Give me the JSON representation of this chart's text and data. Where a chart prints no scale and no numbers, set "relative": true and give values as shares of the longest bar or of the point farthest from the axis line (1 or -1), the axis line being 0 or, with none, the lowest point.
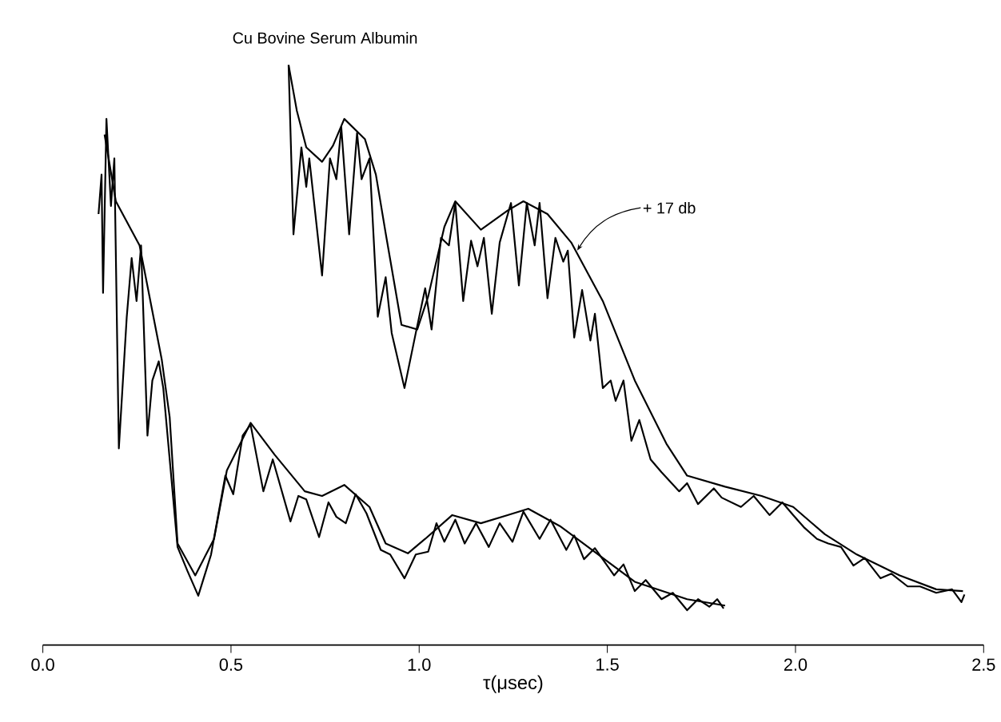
{
  "chart_data": {
    "type": "line",
    "title": "Cu Bovine Serum Albumin",
    "xlabel": "τ(μsec)",
    "relative": true,
    "xlim": [
      0,
      2.5
    ],
    "xticks": [
      {
        "value": 0,
        "label": "0.0"
      },
      {
        "value": 0.5,
        "label": "0.5"
      },
      {
        "value": 1,
        "label": "1.0"
      },
      {
        "value": 1.5,
        "label": "1.5"
      },
      {
        "value": 2,
        "label": "2.0"
      },
      {
        "value": 2.5,
        "label": "2.5"
      }
    ],
    "annotations": [
      {
        "text": "+ 17 db",
        "x": 1.42,
        "y": 0.68
      }
    ],
    "series": [
      {
        "color": "#000000",
        "x": [
          0.148,
          0.156,
          0.16,
          0.169,
          0.181,
          0.19,
          0.202,
          0.223,
          0.236,
          0.249,
          0.261,
          0.278,
          0.291,
          0.308,
          0.32,
          0.341,
          0.358,
          0.384,
          0.413,
          0.447,
          0.485,
          0.506,
          0.531,
          0.552,
          0.586,
          0.611,
          0.658,
          0.679,
          0.7,
          0.734,
          0.759,
          0.78,
          0.805,
          0.831,
          0.86,
          0.898,
          0.923,
          0.961,
          0.991,
          1.024,
          1.046,
          1.067,
          1.096,
          1.121,
          1.151,
          1.185,
          1.214,
          1.248,
          1.277,
          1.32,
          1.349,
          1.391,
          1.412,
          1.438,
          1.467,
          1.518,
          1.543,
          1.573,
          1.602,
          1.644,
          1.674,
          1.712,
          1.741,
          1.771,
          1.792,
          1.809
        ],
        "values": [
          0.743,
          0.811,
          0.607,
          0.907,
          0.757,
          0.839,
          0.339,
          0.566,
          0.667,
          0.593,
          0.689,
          0.361,
          0.456,
          0.489,
          0.443,
          0.292,
          0.169,
          0.128,
          0.085,
          0.156,
          0.292,
          0.26,
          0.361,
          0.38,
          0.265,
          0.32,
          0.213,
          0.257,
          0.251,
          0.186,
          0.246,
          0.221,
          0.21,
          0.26,
          0.227,
          0.164,
          0.156,
          0.115,
          0.156,
          0.161,
          0.21,
          0.178,
          0.216,
          0.175,
          0.21,
          0.169,
          0.21,
          0.178,
          0.23,
          0.183,
          0.216,
          0.164,
          0.189,
          0.148,
          0.167,
          0.12,
          0.139,
          0.093,
          0.112,
          0.079,
          0.09,
          0.06,
          0.079,
          0.066,
          0.079,
          0.063
        ]
      },
      {
        "color": "#000000",
        "x": [
          0.164,
          0.194,
          0.257,
          0.316,
          0.337,
          0.358,
          0.405,
          0.455,
          0.489,
          0.552,
          0.616,
          0.696,
          0.742,
          0.801,
          0.868,
          0.911,
          0.97,
          1.016,
          1.088,
          1.164,
          1.235,
          1.29,
          1.374,
          1.476,
          1.573,
          1.712,
          1.813
        ],
        "values": [
          0.88,
          0.765,
          0.689,
          0.492,
          0.393,
          0.175,
          0.12,
          0.183,
          0.301,
          0.383,
          0.328,
          0.265,
          0.257,
          0.276,
          0.238,
          0.175,
          0.158,
          0.183,
          0.224,
          0.21,
          0.224,
          0.235,
          0.205,
          0.156,
          0.109,
          0.079,
          0.068
        ]
      },
      {
        "color": "#000000",
        "x": [
          0.653,
          0.666,
          0.687,
          0.7,
          0.708,
          0.742,
          0.763,
          0.78,
          0.793,
          0.814,
          0.835,
          0.847,
          0.868,
          0.89,
          0.911,
          0.927,
          0.961,
          0.991,
          1.016,
          1.033,
          1.058,
          1.079,
          1.096,
          1.117,
          1.138,
          1.155,
          1.172,
          1.193,
          1.214,
          1.244,
          1.265,
          1.286,
          1.307,
          1.32,
          1.341,
          1.362,
          1.383,
          1.395,
          1.412,
          1.433,
          1.455,
          1.467,
          1.488,
          1.509,
          1.522,
          1.543,
          1.564,
          1.585,
          1.615,
          1.644,
          1.691,
          1.712,
          1.741,
          1.783,
          1.804,
          1.855,
          1.889,
          1.931,
          1.965,
          1.994,
          2.024,
          2.057,
          2.087,
          2.121,
          2.154,
          2.184,
          2.226,
          2.255,
          2.298,
          2.331,
          2.374,
          2.416,
          2.441,
          2.449
        ],
        "values": [
          1.0,
          0.708,
          0.858,
          0.79,
          0.839,
          0.637,
          0.839,
          0.803,
          0.893,
          0.708,
          0.883,
          0.803,
          0.839,
          0.566,
          0.634,
          0.538,
          0.443,
          0.538,
          0.615,
          0.544,
          0.702,
          0.689,
          0.762,
          0.593,
          0.697,
          0.653,
          0.702,
          0.571,
          0.694,
          0.762,
          0.62,
          0.762,
          0.689,
          0.762,
          0.598,
          0.702,
          0.661,
          0.68,
          0.53,
          0.612,
          0.525,
          0.571,
          0.443,
          0.456,
          0.421,
          0.456,
          0.352,
          0.388,
          0.32,
          0.298,
          0.265,
          0.279,
          0.243,
          0.27,
          0.254,
          0.238,
          0.257,
          0.224,
          0.246,
          0.224,
          0.202,
          0.183,
          0.175,
          0.169,
          0.137,
          0.15,
          0.115,
          0.123,
          0.101,
          0.101,
          0.09,
          0.096,
          0.074,
          0.087
        ]
      },
      {
        "color": "#000000",
        "x": [
          0.653,
          0.675,
          0.7,
          0.742,
          0.771,
          0.801,
          0.856,
          0.885,
          0.911,
          0.953,
          0.995,
          1.024,
          1.067,
          1.096,
          1.164,
          1.235,
          1.277,
          1.341,
          1.404,
          1.488,
          1.573,
          1.657,
          1.712,
          1.813,
          1.91,
          1.994,
          2.078,
          2.163,
          2.277,
          2.374,
          2.445
        ],
        "values": [
          1.0,
          0.921,
          0.858,
          0.833,
          0.861,
          0.907,
          0.872,
          0.811,
          0.71,
          0.552,
          0.544,
          0.601,
          0.721,
          0.765,
          0.716,
          0.749,
          0.765,
          0.743,
          0.694,
          0.593,
          0.456,
          0.347,
          0.292,
          0.273,
          0.257,
          0.238,
          0.191,
          0.156,
          0.12,
          0.096,
          0.093
        ]
      }
    ]
  }
}
